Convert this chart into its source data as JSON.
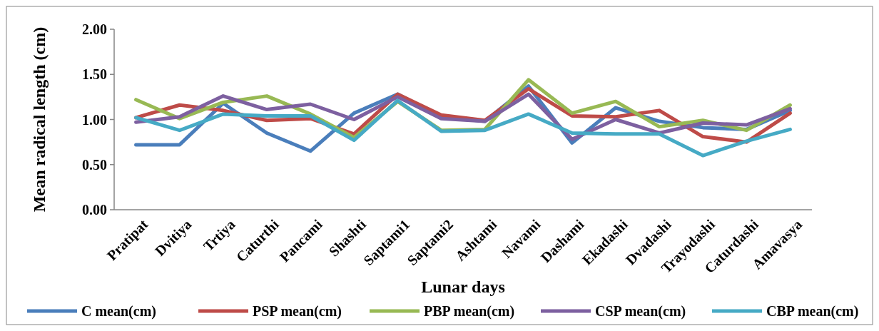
{
  "chart_data": {
    "type": "line",
    "xlabel": "Lunar days",
    "ylabel": "Mean radical length (cm)",
    "categories": [
      "Pratipat",
      "Dvitiya",
      "Trtiya",
      "Caturthi",
      "Pancami",
      "Shashti",
      "Saptami1",
      "Saptami2",
      "Ashtami",
      "Navami",
      "Dashami",
      "Ekadashi",
      "Dvadashi",
      "Trayodashi",
      "Caturdashi",
      "Amavasya"
    ],
    "series": [
      {
        "name": "C mean(cm)",
        "color": "#4a7ebb",
        "values": [
          0.72,
          0.72,
          1.18,
          0.85,
          0.65,
          1.07,
          1.28,
          1.03,
          0.98,
          1.37,
          0.74,
          1.13,
          0.98,
          0.91,
          0.89,
          1.1
        ]
      },
      {
        "name": "PSP mean(cm)",
        "color": "#be4b48",
        "values": [
          1.02,
          1.16,
          1.1,
          0.99,
          1.01,
          0.84,
          1.28,
          1.05,
          0.99,
          1.34,
          1.04,
          1.03,
          1.1,
          0.81,
          0.75,
          1.07
        ]
      },
      {
        "name": "PBP mean(cm)",
        "color": "#98b954",
        "values": [
          1.22,
          1.01,
          1.19,
          1.26,
          1.06,
          0.8,
          1.2,
          0.88,
          0.89,
          1.44,
          1.07,
          1.2,
          0.92,
          0.99,
          0.88,
          1.16
        ]
      },
      {
        "name": "CSP mean(cm)",
        "color": "#7d60a0",
        "values": [
          0.97,
          1.03,
          1.26,
          1.11,
          1.17,
          1.0,
          1.25,
          1.01,
          0.98,
          1.28,
          0.78,
          1.0,
          0.85,
          0.96,
          0.94,
          1.12
        ]
      },
      {
        "name": "CBP mean(cm)",
        "color": "#46aac5",
        "values": [
          1.02,
          0.88,
          1.06,
          1.04,
          1.04,
          0.77,
          1.21,
          0.87,
          0.88,
          1.06,
          0.85,
          0.84,
          0.84,
          0.6,
          0.76,
          0.89
        ]
      }
    ],
    "ylim": [
      0,
      2
    ],
    "yticks": [
      {
        "value": 0,
        "label": "0.00"
      },
      {
        "value": 0.5,
        "label": "0.50"
      },
      {
        "value": 1,
        "label": "1.00"
      },
      {
        "value": 1.5,
        "label": "1.50"
      },
      {
        "value": 2,
        "label": "2.00"
      }
    ],
    "grid": false,
    "legend": "bottom",
    "marker": "none",
    "line_style": "solid"
  }
}
